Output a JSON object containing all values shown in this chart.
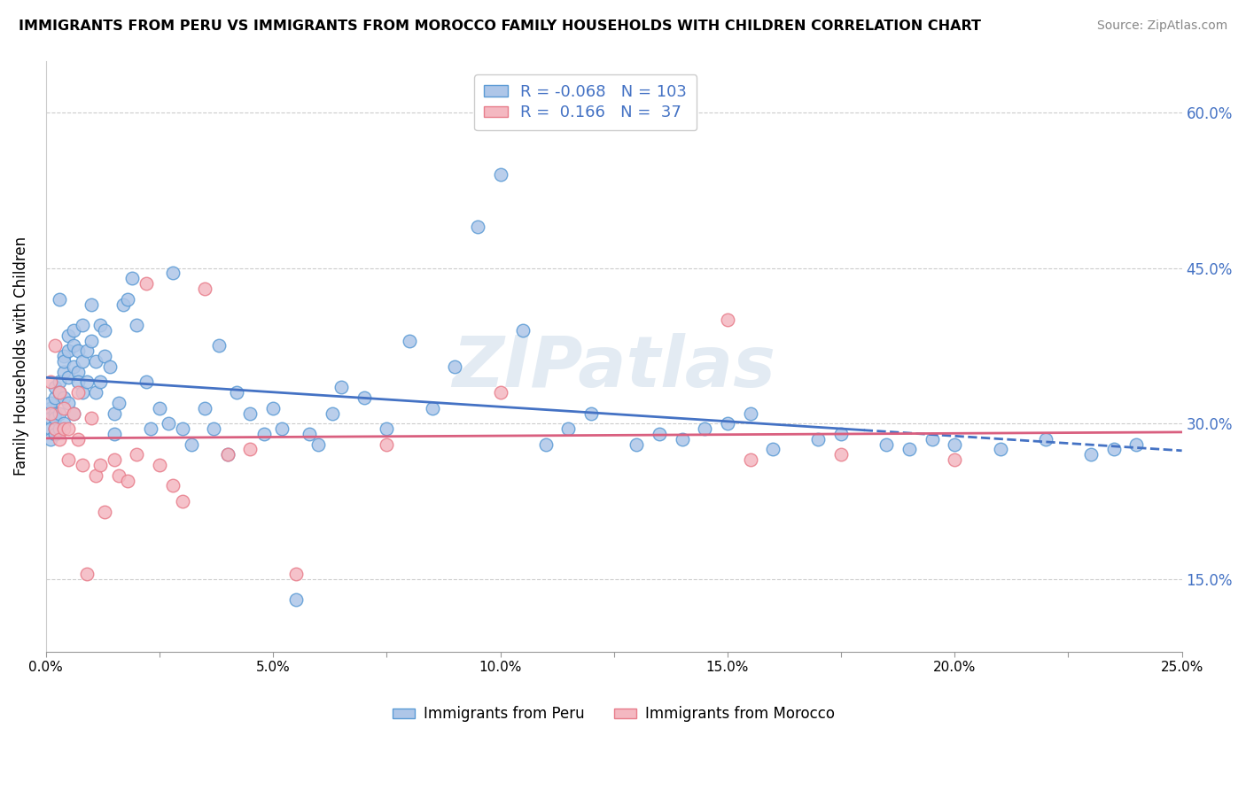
{
  "title": "IMMIGRANTS FROM PERU VS IMMIGRANTS FROM MOROCCO FAMILY HOUSEHOLDS WITH CHILDREN CORRELATION CHART",
  "source": "Source: ZipAtlas.com",
  "ylabel": "Family Households with Children",
  "xlim": [
    0.0,
    0.25
  ],
  "ylim": [
    0.08,
    0.65
  ],
  "xticks": [
    0.0,
    0.025,
    0.05,
    0.075,
    0.1,
    0.125,
    0.15,
    0.175,
    0.2,
    0.225,
    0.25
  ],
  "yticks": [
    0.15,
    0.3,
    0.45,
    0.6
  ],
  "ytick_labels": [
    "15.0%",
    "30.0%",
    "45.0%",
    "60.0%"
  ],
  "xtick_labels": [
    "0.0%",
    "",
    "5.0%",
    "",
    "10.0%",
    "",
    "15.0%",
    "",
    "20.0%",
    "",
    "25.0%"
  ],
  "peru_color": "#aec6e8",
  "peru_edge_color": "#5b9bd5",
  "morocco_color": "#f4b8c1",
  "morocco_edge_color": "#e87d8b",
  "peru_R": -0.068,
  "peru_N": 103,
  "morocco_R": 0.166,
  "morocco_N": 37,
  "peru_line_color": "#4472c4",
  "morocco_line_color": "#d95f7f",
  "peru_line_solid_end": 0.18,
  "legend_peru_label": "Immigrants from Peru",
  "legend_morocco_label": "Immigrants from Morocco",
  "watermark": "ZIPatlas",
  "peru_points_x": [
    0.001,
    0.001,
    0.001,
    0.001,
    0.001,
    0.002,
    0.002,
    0.002,
    0.002,
    0.002,
    0.002,
    0.003,
    0.003,
    0.003,
    0.003,
    0.003,
    0.004,
    0.004,
    0.004,
    0.004,
    0.004,
    0.005,
    0.005,
    0.005,
    0.005,
    0.006,
    0.006,
    0.006,
    0.006,
    0.007,
    0.007,
    0.007,
    0.008,
    0.008,
    0.008,
    0.009,
    0.009,
    0.01,
    0.01,
    0.011,
    0.011,
    0.012,
    0.012,
    0.013,
    0.013,
    0.014,
    0.015,
    0.015,
    0.016,
    0.017,
    0.018,
    0.019,
    0.02,
    0.022,
    0.023,
    0.025,
    0.027,
    0.028,
    0.03,
    0.032,
    0.035,
    0.037,
    0.038,
    0.04,
    0.042,
    0.045,
    0.048,
    0.05,
    0.052,
    0.055,
    0.058,
    0.06,
    0.063,
    0.065,
    0.07,
    0.075,
    0.08,
    0.085,
    0.09,
    0.095,
    0.1,
    0.105,
    0.11,
    0.115,
    0.12,
    0.13,
    0.135,
    0.14,
    0.145,
    0.15,
    0.155,
    0.16,
    0.17,
    0.175,
    0.185,
    0.19,
    0.195,
    0.2,
    0.21,
    0.22,
    0.23,
    0.235,
    0.24
  ],
  "peru_points_y": [
    0.315,
    0.305,
    0.295,
    0.285,
    0.32,
    0.31,
    0.295,
    0.325,
    0.335,
    0.305,
    0.29,
    0.42,
    0.34,
    0.31,
    0.33,
    0.295,
    0.365,
    0.35,
    0.325,
    0.3,
    0.36,
    0.345,
    0.385,
    0.32,
    0.37,
    0.355,
    0.39,
    0.375,
    0.31,
    0.37,
    0.35,
    0.34,
    0.395,
    0.36,
    0.33,
    0.37,
    0.34,
    0.415,
    0.38,
    0.36,
    0.33,
    0.395,
    0.34,
    0.365,
    0.39,
    0.355,
    0.29,
    0.31,
    0.32,
    0.415,
    0.42,
    0.44,
    0.395,
    0.34,
    0.295,
    0.315,
    0.3,
    0.445,
    0.295,
    0.28,
    0.315,
    0.295,
    0.375,
    0.27,
    0.33,
    0.31,
    0.29,
    0.315,
    0.295,
    0.13,
    0.29,
    0.28,
    0.31,
    0.335,
    0.325,
    0.295,
    0.38,
    0.315,
    0.355,
    0.49,
    0.54,
    0.39,
    0.28,
    0.295,
    0.31,
    0.28,
    0.29,
    0.285,
    0.295,
    0.3,
    0.31,
    0.275,
    0.285,
    0.29,
    0.28,
    0.275,
    0.285,
    0.28,
    0.275,
    0.285,
    0.27,
    0.275,
    0.28
  ],
  "morocco_points_x": [
    0.001,
    0.001,
    0.002,
    0.002,
    0.003,
    0.003,
    0.004,
    0.004,
    0.005,
    0.005,
    0.006,
    0.007,
    0.007,
    0.008,
    0.009,
    0.01,
    0.011,
    0.012,
    0.013,
    0.015,
    0.016,
    0.018,
    0.02,
    0.022,
    0.025,
    0.028,
    0.03,
    0.035,
    0.04,
    0.045,
    0.055,
    0.075,
    0.1,
    0.15,
    0.155,
    0.175,
    0.2
  ],
  "morocco_points_y": [
    0.31,
    0.34,
    0.375,
    0.295,
    0.33,
    0.285,
    0.295,
    0.315,
    0.265,
    0.295,
    0.31,
    0.285,
    0.33,
    0.26,
    0.155,
    0.305,
    0.25,
    0.26,
    0.215,
    0.265,
    0.25,
    0.245,
    0.27,
    0.435,
    0.26,
    0.24,
    0.225,
    0.43,
    0.27,
    0.275,
    0.155,
    0.28,
    0.33,
    0.4,
    0.265,
    0.27,
    0.265
  ]
}
